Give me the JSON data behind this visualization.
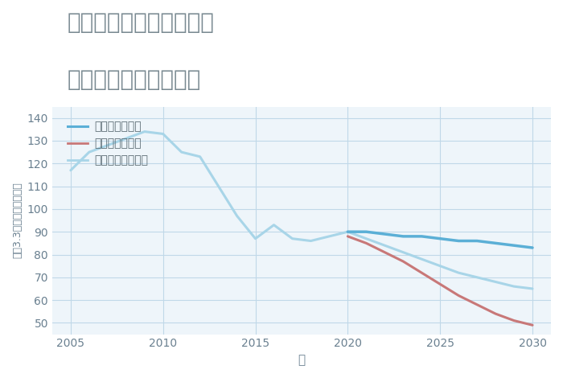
{
  "title_line1": "兵庫県豊岡市出石町柳の",
  "title_line2": "中古戸建ての価格推移",
  "xlabel": "年",
  "ylabel": "坪（3.3㎡）単価（万円）",
  "ylim": [
    45,
    145
  ],
  "yticks": [
    50,
    60,
    70,
    80,
    90,
    100,
    110,
    120,
    130,
    140
  ],
  "xlim": [
    2004,
    2031
  ],
  "xticks": [
    2005,
    2010,
    2015,
    2020,
    2025,
    2030
  ],
  "good_scenario": {
    "label": "グッドシナリオ",
    "color": "#5BAFD6",
    "linewidth": 2.5,
    "x": [
      2020,
      2021,
      2022,
      2023,
      2024,
      2025,
      2026,
      2027,
      2028,
      2029,
      2030
    ],
    "y": [
      90,
      90,
      89,
      88,
      88,
      87,
      86,
      86,
      85,
      84,
      83
    ]
  },
  "bad_scenario": {
    "label": "バッドシナリオ",
    "color": "#C87878",
    "linewidth": 2.2,
    "x": [
      2020,
      2021,
      2022,
      2023,
      2024,
      2025,
      2026,
      2027,
      2028,
      2029,
      2030
    ],
    "y": [
      88,
      85,
      81,
      77,
      72,
      67,
      62,
      58,
      54,
      51,
      49
    ]
  },
  "normal_scenario": {
    "label": "ノーマルシナリオ",
    "color": "#A8D5E8",
    "linewidth": 2.2,
    "x": [
      2005,
      2006,
      2007,
      2008,
      2009,
      2010,
      2011,
      2012,
      2013,
      2014,
      2015,
      2016,
      2017,
      2018,
      2019,
      2020,
      2021,
      2022,
      2023,
      2024,
      2025,
      2026,
      2027,
      2028,
      2029,
      2030
    ],
    "y": [
      117,
      125,
      128,
      131,
      134,
      133,
      125,
      123,
      110,
      97,
      87,
      93,
      87,
      86,
      88,
      90,
      87,
      84,
      81,
      78,
      75,
      72,
      70,
      68,
      66,
      65
    ]
  },
  "bg_color": "#eef5fa",
  "plot_bg_color": "#eef5fa",
  "grid_color": "#c0d8e8",
  "title_color": "#7a8a92",
  "tick_color": "#6a8090",
  "legend_text_color": "#5a6a72",
  "title_fontsize": 20,
  "legend_fontsize": 10,
  "tick_fontsize": 10,
  "xlabel_fontsize": 11,
  "ylabel_fontsize": 9
}
